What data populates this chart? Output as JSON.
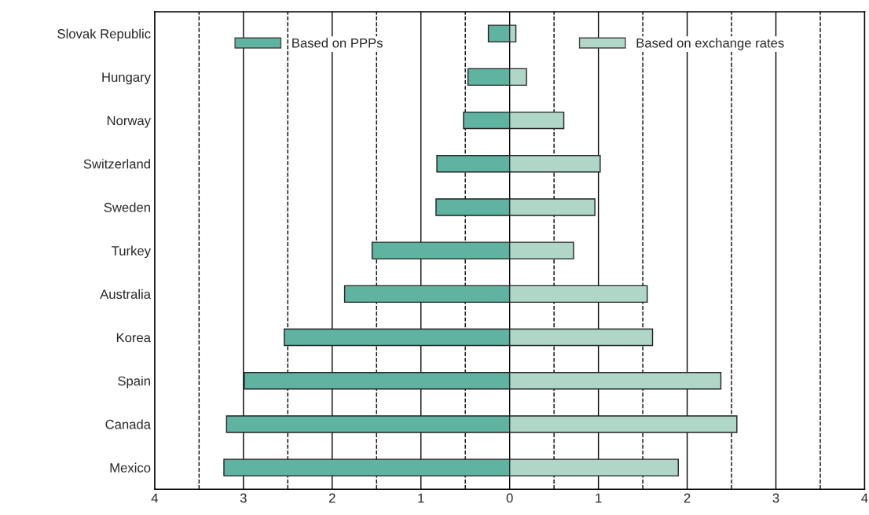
{
  "chart_data": {
    "type": "bar",
    "orientation": "horizontal",
    "categories": [
      "Slovak Republic",
      "Hungary",
      "Norway",
      "Switzerland",
      "Sweden",
      "Turkey",
      "Australia",
      "Korea",
      "Spain",
      "Canada",
      "Mexico"
    ],
    "series": [
      {
        "name": "Based on PPPs",
        "color": "#5fb3a1",
        "values": [
          -0.24,
          -0.47,
          -0.52,
          -0.82,
          -0.83,
          -1.55,
          -1.86,
          -2.54,
          -2.99,
          -3.19,
          -3.22
        ]
      },
      {
        "name": "Based on exchange rates",
        "color": "#b0d6c8",
        "values": [
          0.07,
          0.19,
          0.61,
          1.02,
          0.96,
          0.72,
          1.55,
          1.61,
          2.38,
          2.56,
          1.9
        ]
      }
    ],
    "xlim": [
      -4,
      4
    ],
    "xticks": [
      {
        "value": -4,
        "label": "4"
      },
      {
        "value": -3,
        "label": "3"
      },
      {
        "value": -2,
        "label": "2"
      },
      {
        "value": -1,
        "label": "1"
      },
      0,
      1,
      2,
      3,
      4
    ],
    "ref_lines": [
      {
        "axis": "x",
        "value": -3.5,
        "line_style": "dashed"
      },
      {
        "axis": "x",
        "value": -2.5,
        "line_style": "dashed"
      },
      {
        "axis": "x",
        "value": -1.5,
        "line_style": "dashed"
      },
      {
        "axis": "x",
        "value": -0.5,
        "line_style": "dashed"
      },
      {
        "axis": "x",
        "value": 0.5,
        "line_style": "dashed"
      },
      {
        "axis": "x",
        "value": 1.5,
        "line_style": "dashed"
      },
      {
        "axis": "x",
        "value": 2.5,
        "line_style": "dashed"
      },
      {
        "axis": "x",
        "value": 3.5,
        "line_style": "dashed"
      }
    ],
    "grid": "x",
    "legend": "top",
    "stacked": true
  }
}
